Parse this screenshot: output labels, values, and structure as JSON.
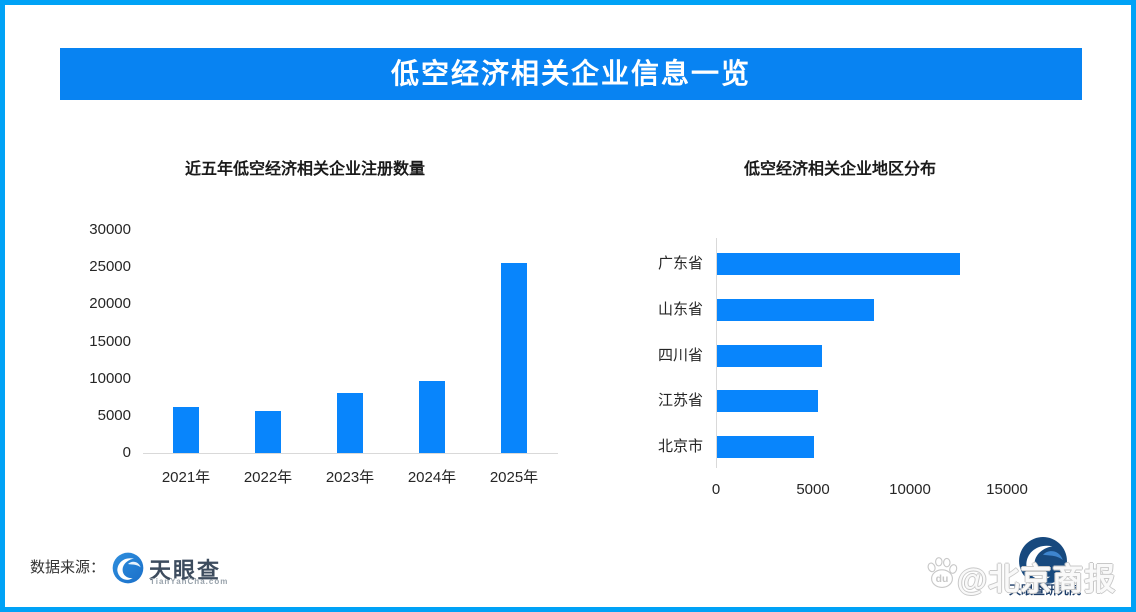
{
  "header": {
    "title": "低空经济相关企业信息一览"
  },
  "colors": {
    "border_blue": "#00A2F6",
    "banner_blue": "#0883F2",
    "bar_blue": "#0885FC",
    "axis_gray": "#D9D9D9",
    "label_dark": "#262626"
  },
  "chart_data": [
    {
      "type": "bar",
      "title": "近五年低空经济相关企业注册数量",
      "categories": [
        "2021年",
        "2022年",
        "2023年",
        "2024年",
        "2025年"
      ],
      "values": [
        6200,
        5600,
        8100,
        9700,
        25600
      ],
      "xlabel": "",
      "ylabel": "",
      "ylim": [
        0,
        30000
      ],
      "yticks": [
        0,
        5000,
        10000,
        15000,
        20000,
        25000,
        30000
      ],
      "grid": false,
      "legend": false,
      "bar_color": "#0885FC"
    },
    {
      "type": "bar-horizontal",
      "title": "低空经济相关企业地区分布",
      "categories": [
        "广东省",
        "山东省",
        "四川省",
        "江苏省",
        "北京市"
      ],
      "values": [
        12500,
        8100,
        5400,
        5200,
        5000
      ],
      "xlabel": "",
      "ylabel": "",
      "xlim": [
        0,
        17500
      ],
      "xticks": [
        0,
        5000,
        10000,
        15000
      ],
      "grid": false,
      "legend": false,
      "bar_color": "#0885FC"
    }
  ],
  "footer": {
    "source_label": "数据来源：",
    "tianyancha_logo": {
      "name": "天眼查",
      "domain": "TianYanCha.com"
    },
    "watermark": {
      "handle": "@北京商报",
      "paw_text": "du"
    },
    "research_logo": {
      "name": "天眼查研究院"
    }
  }
}
